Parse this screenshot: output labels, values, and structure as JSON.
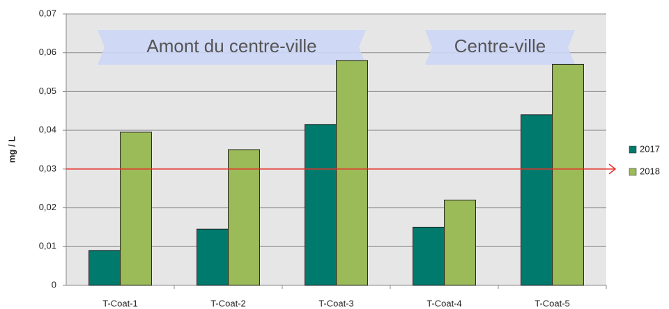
{
  "chart_data": {
    "type": "bar",
    "y_label": "mg / L",
    "categories": [
      "T-Coat-1",
      "T-Coat-2",
      "T-Coat-3",
      "T-Coat-4",
      "T-Coat-5"
    ],
    "series": [
      {
        "name": "2017",
        "color": "#007a6c",
        "values": [
          0.009,
          0.0145,
          0.0415,
          0.015,
          0.044
        ]
      },
      {
        "name": "2018",
        "color": "#9bbb59",
        "values": [
          0.0395,
          0.035,
          0.058,
          0.022,
          0.057
        ]
      }
    ],
    "ylim": [
      0,
      0.07
    ],
    "yticks": [
      0,
      {
        "value": 0.01,
        "label": "0,01"
      },
      {
        "value": 0.02,
        "label": "0,02"
      },
      {
        "value": 0.03,
        "label": "0,03"
      },
      {
        "value": 0.04,
        "label": "0,04"
      },
      {
        "value": 0.05,
        "label": "0,05"
      },
      {
        "value": 0.06,
        "label": "0,06"
      },
      {
        "value": 0.07,
        "label": "0,07"
      }
    ],
    "grid": true,
    "threshold": 0.03,
    "threshold_color": "#e8302a",
    "annotations": [
      "Amont du centre-ville",
      "Centre-ville"
    ],
    "legend": "right"
  }
}
